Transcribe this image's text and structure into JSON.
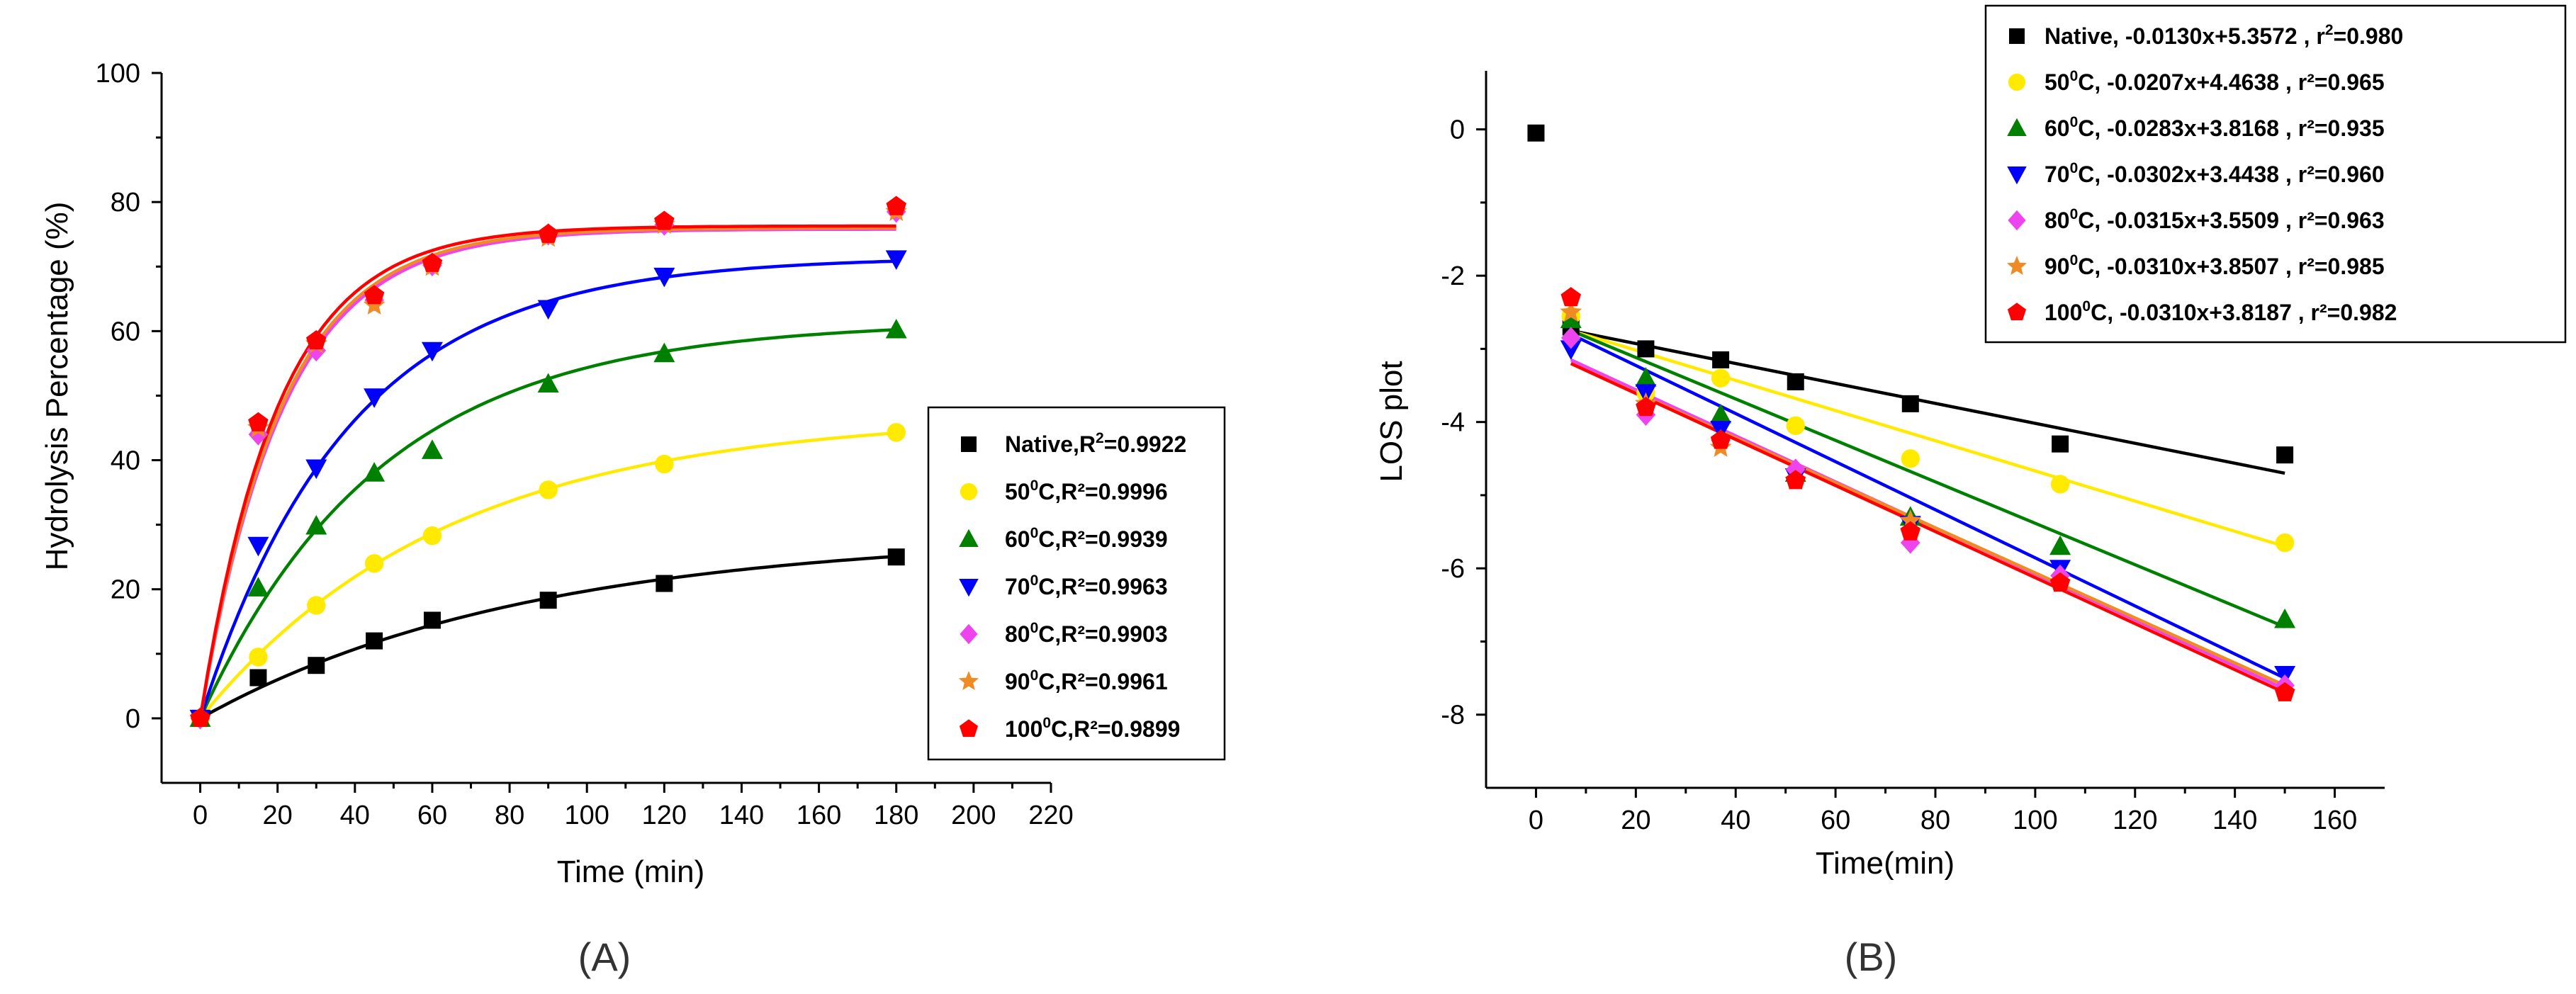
{
  "chart_data": [
    {
      "panel_label": "(A)",
      "type": "scatter",
      "xlabel": "Time (min)",
      "ylabel": "Hydrolysis Percentage (%)",
      "xlim": [
        -10,
        220
      ],
      "ylim": [
        -10,
        100
      ],
      "xticks": [
        0,
        20,
        40,
        60,
        80,
        100,
        120,
        140,
        160,
        180,
        200,
        220
      ],
      "yticks": [
        0,
        20,
        40,
        60,
        80,
        100
      ],
      "legend_position": "center-right",
      "legend_title_suffix": ",R",
      "series": [
        {
          "name": "Native",
          "label_pre": "Native,R",
          "label_sup": "2",
          "label_post": "=0.9922",
          "color": "#000000",
          "marker": "square",
          "x": [
            0,
            15,
            30,
            45,
            60,
            90,
            120,
            180
          ],
          "y": [
            0,
            6.3,
            8.2,
            12.0,
            15.2,
            18.3,
            20.9,
            25.0
          ],
          "fit": {
            "a": 28.5,
            "k": 0.0118
          }
        },
        {
          "name": "50°C",
          "label_pre": "50",
          "label_sup": "0",
          "label_post": "C,R²=0.9996",
          "color": "#ffea00",
          "marker": "circle",
          "x": [
            0,
            15,
            30,
            45,
            60,
            90,
            120,
            180
          ],
          "y": [
            0,
            9.5,
            17.5,
            24.0,
            28.3,
            35.4,
            39.4,
            44.3
          ],
          "fit": {
            "a": 47.0,
            "k": 0.0157
          }
        },
        {
          "name": "60°C",
          "label_pre": "60",
          "label_sup": "0",
          "label_post": "C,R²=0.9939",
          "color": "#008000",
          "marker": "triangle-up",
          "x": [
            0,
            15,
            30,
            45,
            60,
            90,
            120,
            180
          ],
          "y": [
            0,
            20.2,
            29.8,
            38.0,
            41.5,
            51.8,
            56.5,
            60.2
          ],
          "fit": {
            "a": 61.5,
            "k": 0.0215
          }
        },
        {
          "name": "70°C",
          "label_pre": "70",
          "label_sup": "0",
          "label_post": "C,R²=0.9963",
          "color": "#0000ff",
          "marker": "triangle-down",
          "x": [
            0,
            15,
            30,
            45,
            60,
            90,
            120,
            180
          ],
          "y": [
            0,
            26.8,
            38.8,
            49.8,
            57.0,
            63.5,
            68.5,
            71.2
          ],
          "fit": {
            "a": 71.5,
            "k": 0.026
          }
        },
        {
          "name": "80°C",
          "label_pre": "80",
          "label_sup": "0",
          "label_post": "C,R²=0.9903",
          "color": "#ee44ee",
          "marker": "diamond",
          "x": [
            0,
            15,
            30,
            45,
            60,
            90,
            120,
            180
          ],
          "y": [
            0,
            44.0,
            57.0,
            64.8,
            70.2,
            75.0,
            76.5,
            78.5
          ],
          "fit": {
            "a": 75.8,
            "k": 0.047
          }
        },
        {
          "name": "90°C",
          "label_pre": "90",
          "label_sup": "0",
          "label_post": "C,R²=0.9961",
          "color": "#f08a24",
          "marker": "star",
          "x": [
            0,
            15,
            30,
            45,
            60,
            90,
            120,
            180
          ],
          "y": [
            0,
            45.0,
            58.0,
            64.0,
            70.0,
            74.5,
            76.5,
            78.5
          ],
          "fit": {
            "a": 76.0,
            "k": 0.048
          }
        },
        {
          "name": "100°C",
          "label_pre": "100",
          "label_sup": "0",
          "label_post": "C,R²=0.9899",
          "color": "#ff0000",
          "marker": "pentagon",
          "x": [
            0,
            15,
            30,
            45,
            60,
            90,
            120,
            180
          ],
          "y": [
            0,
            45.8,
            58.5,
            65.5,
            70.5,
            75.0,
            77.0,
            79.3
          ],
          "fit": {
            "a": 76.3,
            "k": 0.05
          }
        }
      ]
    },
    {
      "panel_label": "(B)",
      "type": "scatter",
      "xlabel": "Time(min)",
      "ylabel": "LOS plot",
      "xlim": [
        -10,
        170
      ],
      "ylim": [
        -9,
        0.8
      ],
      "xticks": [
        0,
        20,
        40,
        60,
        80,
        100,
        120,
        140,
        160
      ],
      "yticks": [
        0,
        -2,
        -4,
        -6,
        -8
      ],
      "legend_position": "top-right",
      "series": [
        {
          "name": "Native",
          "label_pre": "Native, -0.0130x+5.3572 , r",
          "label_sup": "2",
          "label_post": "=0.980",
          "color": "#000000",
          "marker": "square",
          "x": [
            0,
            7,
            22,
            37,
            52,
            75,
            105,
            150
          ],
          "y": [
            -0.05,
            -2.7,
            -3.0,
            -3.15,
            -3.45,
            -3.75,
            -4.3,
            -4.45
          ],
          "fit": {
            "x0": 7,
            "y0": -2.75,
            "x1": 150,
            "y1": -4.7
          }
        },
        {
          "name": "50°C",
          "label_pre": "50",
          "label_sup": "0",
          "label_post": "C, -0.0207x+4.4638 , r²=0.965",
          "color": "#ffea00",
          "marker": "circle",
          "x": [
            7,
            22,
            37,
            52,
            75,
            105,
            150
          ],
          "y": [
            -2.55,
            -3.6,
            -3.4,
            -4.05,
            -4.5,
            -4.85,
            -5.65
          ],
          "fit": {
            "x0": 7,
            "y0": -2.75,
            "x1": 150,
            "y1": -5.7
          }
        },
        {
          "name": "60°C",
          "label_pre": "60",
          "label_sup": "0",
          "label_post": "C, -0.0283x+3.8168 , r²=0.935",
          "color": "#008000",
          "marker": "triangle-up",
          "x": [
            7,
            22,
            37,
            52,
            75,
            105,
            150
          ],
          "y": [
            -2.6,
            -3.4,
            -3.9,
            -4.7,
            -5.3,
            -5.7,
            -6.7
          ],
          "fit": {
            "x0": 7,
            "y0": -2.75,
            "x1": 150,
            "y1": -6.8
          }
        },
        {
          "name": "70°C",
          "label_pre": "70",
          "label_sup": "0",
          "label_post": "C, -0.0302x+3.4438 , r²=0.960",
          "color": "#0000ff",
          "marker": "triangle-down",
          "x": [
            7,
            22,
            37,
            52,
            75,
            105,
            150
          ],
          "y": [
            -3.0,
            -3.6,
            -4.1,
            -4.75,
            -5.4,
            -6.0,
            -7.45
          ],
          "fit": {
            "x0": 7,
            "y0": -2.8,
            "x1": 150,
            "y1": -7.5
          }
        },
        {
          "name": "80°C",
          "label_pre": "80",
          "label_sup": "0",
          "label_post": "C, -0.0315x+3.5509 , r²=0.963",
          "color": "#ee44ee",
          "marker": "diamond",
          "x": [
            7,
            22,
            37,
            52,
            75,
            105,
            150
          ],
          "y": [
            -2.85,
            -3.9,
            -4.25,
            -4.65,
            -5.65,
            -6.1,
            -7.6
          ],
          "fit": {
            "x0": 7,
            "y0": -3.15,
            "x1": 150,
            "y1": -7.65
          }
        },
        {
          "name": "90°C",
          "label_pre": "90",
          "label_sup": "0",
          "label_post": "C, -0.0310x+3.8507 , r²=0.985",
          "color": "#f08a24",
          "marker": "star",
          "x": [
            7,
            22,
            37,
            52,
            75,
            105,
            150
          ],
          "y": [
            -2.5,
            -3.75,
            -4.35,
            -4.8,
            -5.35,
            -6.2,
            -7.7
          ],
          "fit": {
            "x0": 7,
            "y0": -3.2,
            "x1": 150,
            "y1": -7.6
          }
        },
        {
          "name": "100°C",
          "label_pre": "100",
          "label_sup": "0",
          "label_post": "C, -0.0310x+3.8187 , r²=0.982",
          "color": "#ff0000",
          "marker": "pentagon",
          "x": [
            7,
            22,
            37,
            52,
            75,
            105,
            150
          ],
          "y": [
            -2.3,
            -3.8,
            -4.25,
            -4.8,
            -5.5,
            -6.2,
            -7.7
          ],
          "fit": {
            "x0": 7,
            "y0": -3.2,
            "x1": 150,
            "y1": -7.7
          }
        }
      ]
    }
  ]
}
